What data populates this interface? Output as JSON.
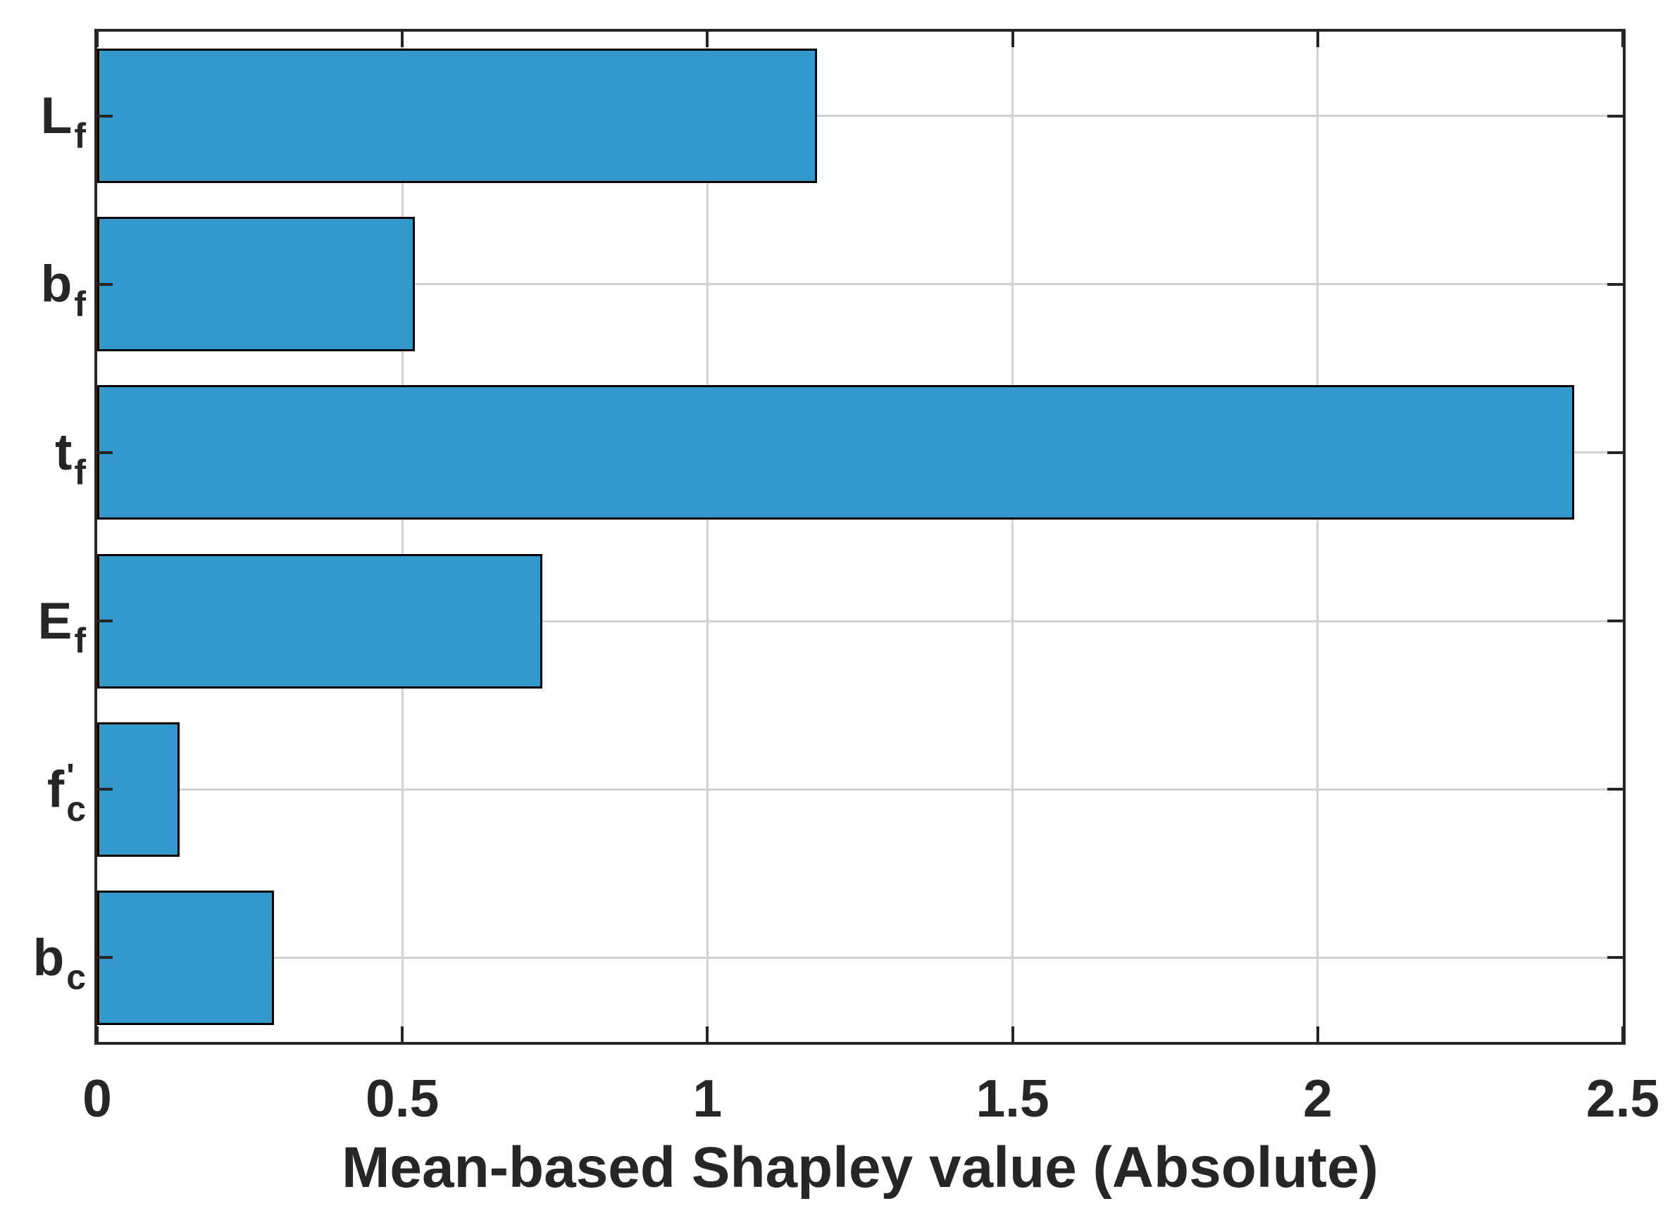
{
  "chart_data": {
    "type": "bar",
    "orientation": "horizontal",
    "title": "",
    "xlabel": "Mean-based Shapley value (Absolute)",
    "ylabel": "",
    "categories": [
      {
        "base": "L",
        "prime": "",
        "sub": "f"
      },
      {
        "base": "b",
        "prime": "",
        "sub": "f"
      },
      {
        "base": "t",
        "prime": "",
        "sub": "f"
      },
      {
        "base": "E",
        "prime": "",
        "sub": "f"
      },
      {
        "base": "f",
        "prime": "'",
        "sub": "c"
      },
      {
        "base": "b",
        "prime": "",
        "sub": "c"
      }
    ],
    "values": [
      1.18,
      0.52,
      2.42,
      0.73,
      0.135,
      0.29
    ],
    "xlim": [
      0,
      2.5
    ],
    "xticks": [
      {
        "value": 0,
        "label": "0"
      },
      {
        "value": 0.5,
        "label": "0.5"
      },
      {
        "value": 1,
        "label": "1"
      },
      {
        "value": 1.5,
        "label": "1.5"
      },
      {
        "value": 2,
        "label": "2"
      },
      {
        "value": 2.5,
        "label": "2.5"
      }
    ],
    "grid": "both",
    "legend": "none",
    "bar_ratio": 0.8,
    "colors": {
      "bar_fill": "#3398cb",
      "bar_edge": "#000000",
      "grid": "#d2d2d2",
      "axis": "#262626",
      "text": "#262626",
      "background": "#ffffff"
    }
  }
}
